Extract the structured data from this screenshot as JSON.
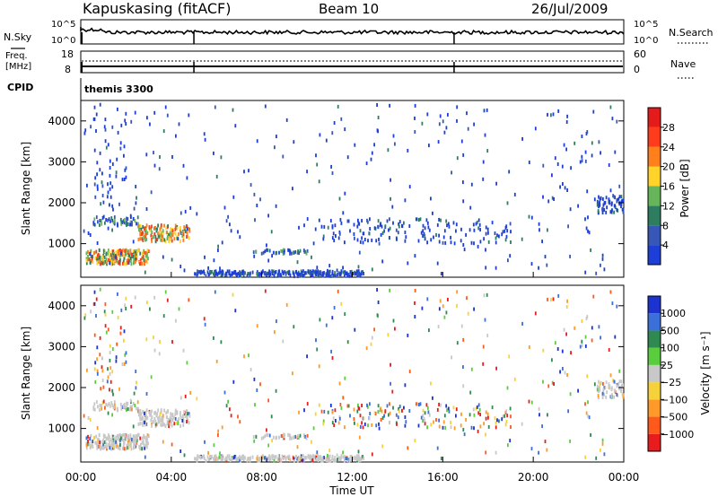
{
  "header": {
    "station": "Kapuskasing (fitACF)",
    "beam": "Beam 10",
    "date": "26/Jul/2009"
  },
  "noise_panel": {
    "left_label": "N.Sky",
    "right_label": "N.Search",
    "y_top_tick": "10^5",
    "y_bottom_tick": "10^0"
  },
  "freq_panel": {
    "left_label_1": "Freq.",
    "left_label_2": "[MHz]",
    "right_label": "Nave",
    "left_ticks": [
      "18",
      "8"
    ],
    "right_ticks": [
      "60",
      "0"
    ]
  },
  "cpid": {
    "label": "CPID",
    "value": "themis 3300"
  },
  "chart_data": [
    {
      "type": "heatmap",
      "name": "power",
      "ylabel": "Slant Range [km]",
      "xlabel": "",
      "x_range_hours": [
        0,
        24
      ],
      "ylim": [
        180,
        4500
      ],
      "y_ticks": [
        "1000",
        "2000",
        "3000",
        "4000"
      ],
      "colorbar": {
        "label": "Power [dB]",
        "ticks": [
          "4",
          "8",
          "12",
          "16",
          "20",
          "24",
          "28"
        ],
        "colors": [
          "#1d3fd8",
          "#3657b5",
          "#2f7d60",
          "#67b55a",
          "#ffd32a",
          "#ff7f1c",
          "#ff3c1c",
          "#e31b1b"
        ]
      }
    },
    {
      "type": "heatmap",
      "name": "velocity",
      "ylabel": "Slant Range [km]",
      "xlabel": "Time UT",
      "x_range_hours": [
        0,
        24
      ],
      "x_ticks": [
        "00:00",
        "04:00",
        "08:00",
        "12:00",
        "16:00",
        "20:00",
        "00:00"
      ],
      "ylim": [
        180,
        4500
      ],
      "y_ticks": [
        "1000",
        "2000",
        "3000",
        "4000"
      ],
      "colorbar": {
        "label": "Velocity [m s⁻¹]",
        "ticks": [
          "1000",
          "500",
          "100",
          "25",
          "−25",
          "−100",
          "−500",
          "−1000"
        ],
        "colors": [
          "#1c33cf",
          "#3b6fd9",
          "#2f8a52",
          "#5acd3f",
          "#c8c8c8",
          "#f6d23a",
          "#ff9a2a",
          "#ff5a1c",
          "#e81c1c"
        ]
      }
    }
  ]
}
